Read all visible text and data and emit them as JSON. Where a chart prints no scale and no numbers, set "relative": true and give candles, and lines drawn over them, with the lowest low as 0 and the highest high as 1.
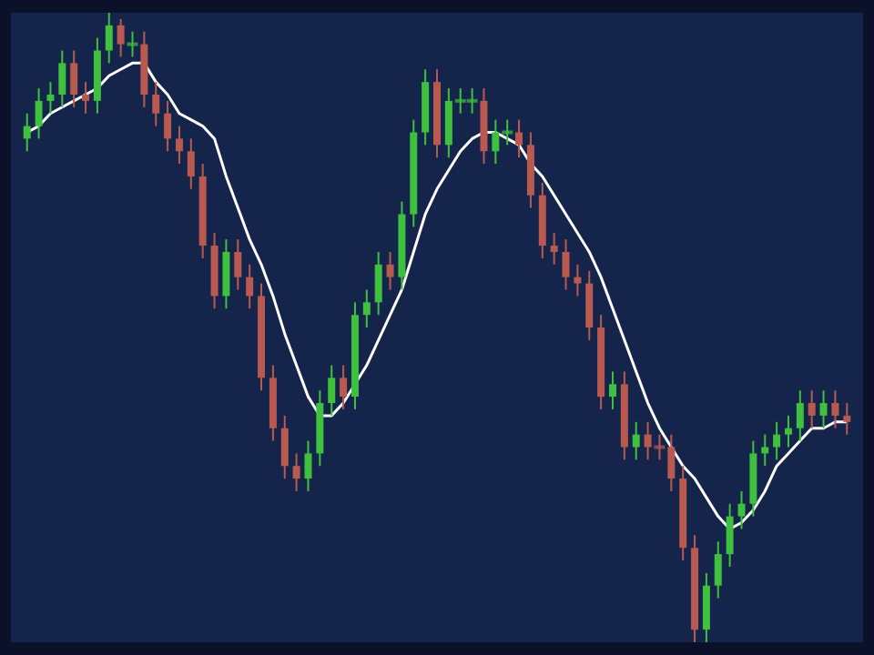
{
  "chart_data": {
    "type": "candlestick",
    "relative": true,
    "tick_labels": false,
    "grid": false,
    "categories": [
      null,
      null,
      null,
      null,
      null,
      null,
      null,
      null,
      null,
      null,
      null,
      null,
      null,
      null,
      null,
      null,
      null,
      null,
      null,
      null,
      null,
      null,
      null,
      null,
      null,
      null,
      null,
      null,
      null,
      null,
      null,
      null,
      null,
      null,
      null,
      null,
      null,
      null,
      null,
      null,
      null,
      null,
      null,
      null,
      null,
      null,
      null,
      null,
      null,
      null,
      null,
      null,
      null,
      null,
      null,
      null,
      null,
      null,
      null,
      null,
      null,
      null,
      null,
      null,
      null,
      null,
      null,
      null,
      null,
      null,
      null
    ],
    "ohlc": [
      [
        0.8,
        0.84,
        0.78,
        0.82
      ],
      [
        0.82,
        0.88,
        0.8,
        0.86
      ],
      [
        0.86,
        0.89,
        0.84,
        0.87
      ],
      [
        0.87,
        0.94,
        0.85,
        0.92
      ],
      [
        0.92,
        0.94,
        0.85,
        0.87
      ],
      [
        0.87,
        0.89,
        0.84,
        0.86
      ],
      [
        0.86,
        0.96,
        0.84,
        0.94
      ],
      [
        0.94,
        1.0,
        0.92,
        0.98
      ],
      [
        0.98,
        0.99,
        0.93,
        0.95
      ],
      [
        0.95,
        0.97,
        0.93,
        0.95
      ],
      [
        0.95,
        0.97,
        0.85,
        0.87
      ],
      [
        0.87,
        0.89,
        0.82,
        0.84
      ],
      [
        0.84,
        0.86,
        0.78,
        0.8
      ],
      [
        0.8,
        0.82,
        0.76,
        0.78
      ],
      [
        0.78,
        0.8,
        0.72,
        0.74
      ],
      [
        0.74,
        0.76,
        0.61,
        0.63
      ],
      [
        0.63,
        0.65,
        0.53,
        0.55
      ],
      [
        0.55,
        0.64,
        0.53,
        0.62
      ],
      [
        0.62,
        0.64,
        0.56,
        0.58
      ],
      [
        0.58,
        0.6,
        0.53,
        0.55
      ],
      [
        0.55,
        0.57,
        0.4,
        0.42
      ],
      [
        0.42,
        0.44,
        0.32,
        0.34
      ],
      [
        0.34,
        0.36,
        0.26,
        0.28
      ],
      [
        0.28,
        0.3,
        0.24,
        0.26
      ],
      [
        0.26,
        0.32,
        0.24,
        0.3
      ],
      [
        0.3,
        0.4,
        0.28,
        0.38
      ],
      [
        0.38,
        0.44,
        0.36,
        0.42
      ],
      [
        0.42,
        0.44,
        0.37,
        0.39
      ],
      [
        0.39,
        0.54,
        0.37,
        0.52
      ],
      [
        0.52,
        0.56,
        0.5,
        0.54
      ],
      [
        0.54,
        0.62,
        0.52,
        0.6
      ],
      [
        0.6,
        0.62,
        0.56,
        0.58
      ],
      [
        0.58,
        0.7,
        0.56,
        0.68
      ],
      [
        0.68,
        0.83,
        0.66,
        0.81
      ],
      [
        0.81,
        0.91,
        0.79,
        0.89
      ],
      [
        0.89,
        0.91,
        0.77,
        0.79
      ],
      [
        0.79,
        0.88,
        0.77,
        0.86
      ],
      [
        0.86,
        0.88,
        0.84,
        0.86
      ],
      [
        0.86,
        0.88,
        0.84,
        0.86
      ],
      [
        0.86,
        0.88,
        0.76,
        0.78
      ],
      [
        0.78,
        0.83,
        0.76,
        0.81
      ],
      [
        0.81,
        0.83,
        0.79,
        0.81
      ],
      [
        0.81,
        0.83,
        0.77,
        0.79
      ],
      [
        0.79,
        0.81,
        0.69,
        0.71
      ],
      [
        0.71,
        0.73,
        0.61,
        0.63
      ],
      [
        0.63,
        0.65,
        0.6,
        0.62
      ],
      [
        0.62,
        0.64,
        0.56,
        0.58
      ],
      [
        0.58,
        0.6,
        0.55,
        0.57
      ],
      [
        0.57,
        0.59,
        0.48,
        0.5
      ],
      [
        0.5,
        0.52,
        0.37,
        0.39
      ],
      [
        0.39,
        0.43,
        0.37,
        0.41
      ],
      [
        0.41,
        0.43,
        0.29,
        0.31
      ],
      [
        0.31,
        0.35,
        0.29,
        0.33
      ],
      [
        0.33,
        0.35,
        0.29,
        0.31
      ],
      [
        0.31,
        0.33,
        0.29,
        0.31
      ],
      [
        0.31,
        0.33,
        0.24,
        0.26
      ],
      [
        0.26,
        0.28,
        0.13,
        0.15
      ],
      [
        0.15,
        0.17,
        0.0,
        0.02
      ],
      [
        0.02,
        0.11,
        0.0,
        0.09
      ],
      [
        0.09,
        0.16,
        0.07,
        0.14
      ],
      [
        0.14,
        0.22,
        0.12,
        0.2
      ],
      [
        0.2,
        0.24,
        0.18,
        0.22
      ],
      [
        0.22,
        0.32,
        0.2,
        0.3
      ],
      [
        0.3,
        0.33,
        0.28,
        0.31
      ],
      [
        0.31,
        0.35,
        0.29,
        0.33
      ],
      [
        0.33,
        0.36,
        0.31,
        0.34
      ],
      [
        0.34,
        0.4,
        0.32,
        0.38
      ],
      [
        0.38,
        0.4,
        0.34,
        0.36
      ],
      [
        0.36,
        0.4,
        0.34,
        0.38
      ],
      [
        0.38,
        0.4,
        0.34,
        0.36
      ],
      [
        0.36,
        0.38,
        0.33,
        0.35
      ]
    ],
    "colors": [
      "#3fc03f",
      "#3fc03f",
      "#3fc03f",
      "#3fc03f",
      "#b85a50",
      "#b85a50",
      "#3fc03f",
      "#3fc03f",
      "#b85a50",
      "#3fc03f",
      "#b85a50",
      "#b85a50",
      "#b85a50",
      "#b85a50",
      "#b85a50",
      "#b85a50",
      "#b85a50",
      "#3fc03f",
      "#b85a50",
      "#b85a50",
      "#b85a50",
      "#b85a50",
      "#b85a50",
      "#b85a50",
      "#3fc03f",
      "#3fc03f",
      "#3fc03f",
      "#b85a50",
      "#3fc03f",
      "#3fc03f",
      "#3fc03f",
      "#b85a50",
      "#3fc03f",
      "#3fc03f",
      "#3fc03f",
      "#b85a50",
      "#3fc03f",
      "#3fc03f",
      "#3fc03f",
      "#b85a50",
      "#3fc03f",
      "#3fc03f",
      "#b85a50",
      "#b85a50",
      "#b85a50",
      "#b85a50",
      "#b85a50",
      "#b85a50",
      "#b85a50",
      "#b85a50",
      "#3fc03f",
      "#b85a50",
      "#3fc03f",
      "#b85a50",
      "#b85a50",
      "#b85a50",
      "#b85a50",
      "#b85a50",
      "#3fc03f",
      "#3fc03f",
      "#3fc03f",
      "#3fc03f",
      "#3fc03f",
      "#3fc03f",
      "#3fc03f",
      "#3fc03f",
      "#3fc03f",
      "#b85a50",
      "#3fc03f",
      "#b85a50",
      "#b85a50"
    ],
    "series": [
      {
        "type": "line",
        "color": "#ffffff",
        "values": [
          0.81,
          0.82,
          0.84,
          0.85,
          0.86,
          0.87,
          0.88,
          0.9,
          0.91,
          0.92,
          0.92,
          0.89,
          0.87,
          0.84,
          0.83,
          0.82,
          0.8,
          0.74,
          0.69,
          0.64,
          0.6,
          0.55,
          0.49,
          0.44,
          0.39,
          0.36,
          0.36,
          0.38,
          0.41,
          0.44,
          0.48,
          0.52,
          0.56,
          0.62,
          0.68,
          0.72,
          0.75,
          0.78,
          0.8,
          0.81,
          0.81,
          0.8,
          0.79,
          0.76,
          0.74,
          0.71,
          0.68,
          0.65,
          0.62,
          0.58,
          0.53,
          0.48,
          0.43,
          0.38,
          0.34,
          0.31,
          0.28,
          0.26,
          0.23,
          0.2,
          0.18,
          0.19,
          0.21,
          0.24,
          0.28,
          0.3,
          0.32,
          0.34,
          0.34,
          0.35,
          0.35
        ]
      }
    ]
  }
}
